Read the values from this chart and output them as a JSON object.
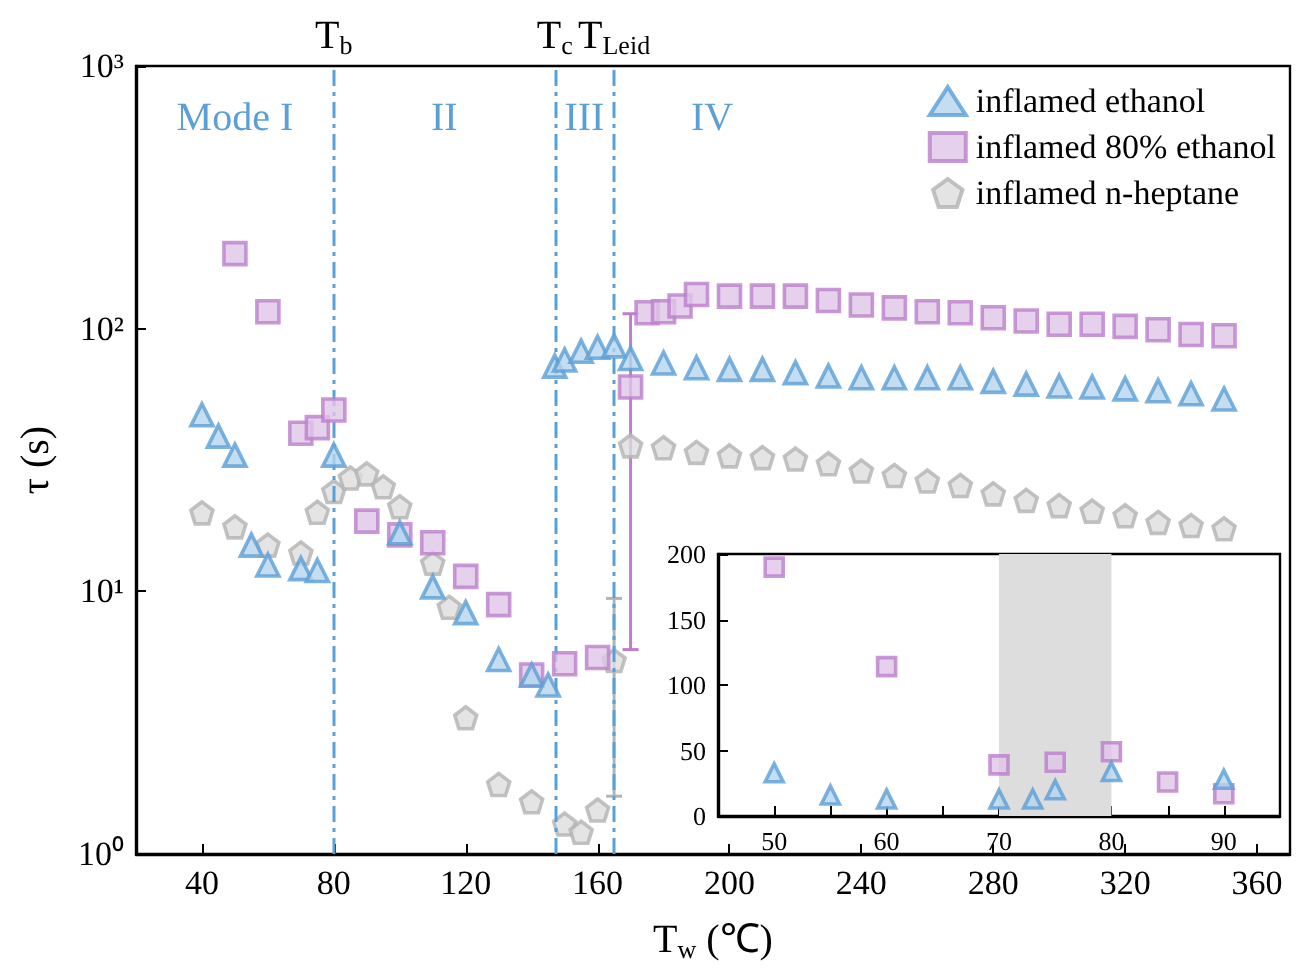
{
  "chart_data": [
    {
      "type": "scatter",
      "xlabel": "T$_{w}$ (℃)",
      "ylabel": "τ (s)",
      "log": "y",
      "xlim": [
        20,
        370
      ],
      "ylim": [
        1,
        1000
      ],
      "xticks": [
        40,
        80,
        120,
        160,
        200,
        240,
        280,
        320,
        360
      ],
      "yticks": [
        {
          "value": 1,
          "label": "10⁰"
        },
        {
          "value": 10,
          "label": "10¹"
        },
        {
          "value": 100,
          "label": "10²"
        },
        {
          "value": 1000,
          "label": "10³"
        }
      ],
      "grid": false,
      "legend": "top right",
      "ref_lines": [
        {
          "axis": "x",
          "value": 80,
          "label": "T$_{b}$",
          "color": "#5b9fd6",
          "line_style": "dashdot"
        },
        {
          "axis": "x",
          "value": 147,
          "label": "T$_{c}$",
          "color": "#5b9fd6",
          "line_style": "dashdot"
        },
        {
          "axis": "x",
          "value": 165,
          "label": "T$_{Leid}$",
          "color": "#5b9fd6",
          "line_style": "dashdot"
        }
      ],
      "annotations": [
        "Mode I",
        "II",
        "III",
        "IV"
      ],
      "series": [
        {
          "name": "inflamed ethanol",
          "color": "#5b9fd6",
          "marker": "triangle",
          "x": [
            40,
            45,
            50,
            55,
            60,
            70,
            75,
            80,
            100,
            110,
            120,
            130,
            140,
            145,
            147,
            150,
            155,
            160,
            165,
            170,
            180,
            190,
            200,
            210,
            220,
            230,
            240,
            250,
            260,
            270,
            280,
            290,
            300,
            310,
            320,
            330,
            340,
            350
          ],
          "values": [
            47,
            39,
            33,
            15,
            12.6,
            12.2,
            12,
            33,
            16.7,
            10.4,
            8.3,
            5.5,
            4.8,
            4.4,
            72,
            76,
            82,
            85,
            86,
            77,
            74,
            71,
            70,
            70,
            68,
            66,
            65,
            65,
            65,
            65,
            63,
            61.5,
            60.5,
            60,
            59,
            58,
            56.5,
            54
          ]
        },
        {
          "name": "inflamed 80% ethanol",
          "color": "#bb7fcc",
          "marker": "square",
          "x": [
            50,
            60,
            70,
            75,
            80,
            90,
            100,
            110,
            120,
            130,
            140,
            150,
            160,
            170,
            175,
            180,
            185,
            190,
            200,
            210,
            220,
            230,
            240,
            250,
            260,
            270,
            280,
            290,
            300,
            310,
            320,
            330,
            340,
            350
          ],
          "values": [
            193,
            116,
            40,
            42,
            49,
            18.5,
            16.4,
            15.3,
            11.4,
            8.9,
            4.8,
            5.3,
            5.6,
            60,
            115,
            116,
            122,
            135,
            133,
            133,
            133,
            128,
            123,
            120,
            116,
            115,
            110,
            107,
            104,
            104,
            102,
            99,
            95,
            94
          ],
          "errors": [
            null,
            null,
            null,
            null,
            null,
            null,
            null,
            null,
            null,
            null,
            null,
            null,
            null,
            [
              6,
              114
            ],
            null,
            null,
            null,
            null,
            null,
            null,
            null,
            null,
            null,
            null,
            null,
            null,
            null,
            null,
            null,
            null,
            null,
            null,
            null,
            null
          ]
        },
        {
          "name": "inflamed n-heptane",
          "color": "#b3b3b3",
          "x": [
            40,
            50,
            60,
            70,
            75,
            80,
            85,
            90,
            95,
            100,
            110,
            115,
            120,
            130,
            140,
            150,
            155,
            160,
            165,
            170,
            180,
            190,
            200,
            210,
            220,
            230,
            240,
            250,
            260,
            270,
            280,
            290,
            300,
            310,
            320,
            330,
            340,
            350
          ],
          "values": [
            19.9,
            17.6,
            15,
            14,
            20,
            24,
            27,
            28,
            25,
            21,
            12.8,
            8.7,
            3.3,
            1.84,
            1.58,
            1.3,
            1.21,
            1.47,
            5.45,
            35.8,
            35.2,
            33.8,
            32.8,
            32.3,
            31.9,
            30.6,
            28.7,
            27.6,
            26.3,
            25.3,
            23.5,
            22.2,
            21.2,
            20.2,
            19.4,
            18.3,
            17.8,
            17.3
          ],
          "errors": [
            null,
            null,
            null,
            null,
            null,
            null,
            null,
            null,
            null,
            null,
            null,
            null,
            null,
            null,
            null,
            null,
            null,
            null,
            [
              1.66,
              9.4
            ],
            null,
            null,
            null,
            null,
            null,
            null,
            null,
            null,
            null,
            null,
            null,
            null,
            null,
            null,
            null,
            null,
            null,
            null,
            null
          ]
        }
      ]
    },
    {
      "type": "scatter",
      "xlim": [
        45,
        95
      ],
      "ylim": [
        0,
        200
      ],
      "xticks": [
        50,
        {
          "value": 55,
          "label": null
        },
        60,
        {
          "value": 65,
          "label": null
        },
        70,
        {
          "value": 75,
          "label": null
        },
        80,
        {
          "value": 85,
          "label": null
        },
        90
      ],
      "yticks": [
        0,
        50,
        100,
        150,
        200
      ],
      "grid": false,
      "bands": [
        {
          "axis": "x",
          "from": 70,
          "to": 80,
          "color": "#dddddd"
        }
      ],
      "series": [
        {
          "color": "#5b9fd6",
          "marker": "triangle",
          "x": [
            50,
            55,
            60,
            70,
            73,
            75,
            80,
            90
          ],
          "values": [
            33,
            16,
            13,
            13,
            13,
            20,
            34,
            28
          ]
        },
        {
          "color": "#bb7fcc",
          "marker": "square",
          "x": [
            50,
            60,
            70,
            75,
            80,
            85,
            90
          ],
          "values": [
            190,
            114,
            39,
            41,
            49,
            26,
            17
          ]
        }
      ]
    }
  ]
}
